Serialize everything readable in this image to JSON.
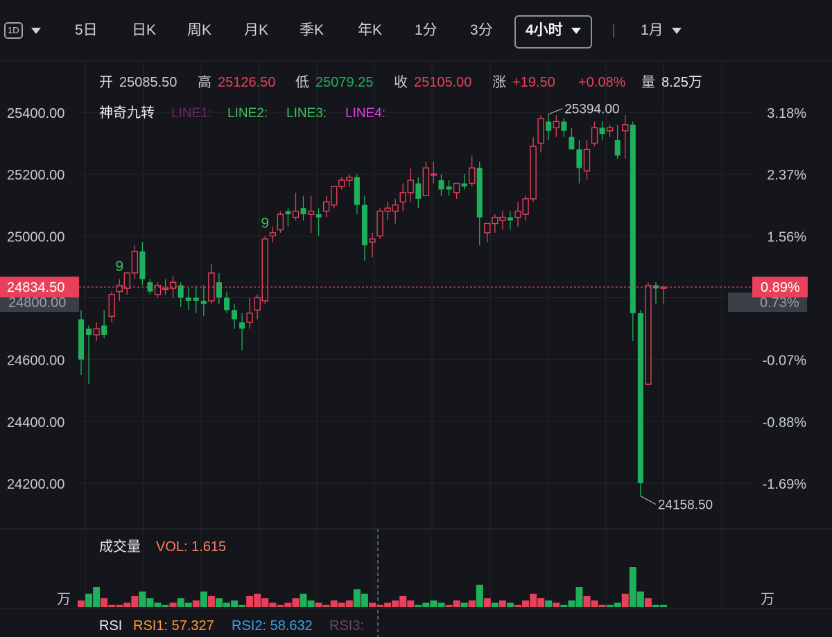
{
  "toolbar": {
    "interval_badge": "1D",
    "tabs": [
      "5日",
      "日K",
      "周K",
      "月K",
      "季K",
      "年K",
      "1分",
      "3分"
    ],
    "active_tab": "4小时",
    "period": "1月"
  },
  "info_bar": {
    "open_label": "开",
    "open": "25085.50",
    "high_label": "高",
    "high": "25126.50",
    "low_label": "低",
    "low": "25079.25",
    "close_label": "收",
    "close": "25105.00",
    "change_label": "涨",
    "change": "+19.50",
    "change_pct": "+0.08%",
    "volume_label": "量",
    "volume": "8.25万"
  },
  "indicator": {
    "name": "神奇九转",
    "lines": [
      "LINE1:",
      "LINE2:",
      "LINE3:",
      "LINE4:"
    ]
  },
  "colors": {
    "up": "#e8405a",
    "down": "#1fb05c",
    "background": "#14161b",
    "line1": "#6d2a63",
    "line2": "#3fbf5f",
    "line3": "#3fbf5f",
    "line4": "#e040e0"
  },
  "volume_panel": {
    "label": "成交量",
    "vol_label": "VOL: 1.615",
    "unit": "万"
  },
  "rsi_panel": {
    "label": "RSI",
    "rsi1": "RSI1: 57.327",
    "rsi2": "RSI2: 58.632",
    "rsi3": "RSI3:"
  },
  "price_marker": {
    "price": "24834.50",
    "pct": "0.89%",
    "hidden_left": "24800.00",
    "hidden_right": "0.73%"
  },
  "chart_data": {
    "type": "candlestick",
    "ylim": [
      24000,
      25550
    ],
    "y_ticks": [
      {
        "value": 25400,
        "label": "25400.00",
        "pct": "3.18%"
      },
      {
        "value": 25200,
        "label": "25200.00",
        "pct": "2.37%"
      },
      {
        "value": 25000,
        "label": "25000.00",
        "pct": "1.56%"
      },
      {
        "value": 24600,
        "label": "24600.00",
        "pct": "-0.07%"
      },
      {
        "value": 24400,
        "label": "24400.00",
        "pct": "-0.88%"
      },
      {
        "value": 24200,
        "label": "24200.00",
        "pct": "-1.69%"
      }
    ],
    "candles": [
      [
        24730,
        24760,
        24550,
        24600
      ],
      [
        24700,
        24710,
        24520,
        24680
      ],
      [
        24680,
        24720,
        24660,
        24700
      ],
      [
        24710,
        24760,
        24670,
        24680
      ],
      [
        24740,
        24820,
        24720,
        24810
      ],
      [
        24820,
        24860,
        24790,
        24840
      ],
      [
        24830,
        24880,
        24810,
        24880
      ],
      [
        24880,
        24970,
        24860,
        24950
      ],
      [
        24950,
        24980,
        24840,
        24860
      ],
      [
        24850,
        24860,
        24810,
        24820
      ],
      [
        24810,
        24850,
        24800,
        24840
      ],
      [
        24830,
        24860,
        24810,
        24830
      ],
      [
        24830,
        24870,
        24800,
        24850
      ],
      [
        24840,
        24850,
        24770,
        24800
      ],
      [
        24800,
        24830,
        24760,
        24790
      ],
      [
        24800,
        24840,
        24750,
        24790
      ],
      [
        24790,
        24840,
        24740,
        24780
      ],
      [
        24790,
        24910,
        24780,
        24880
      ],
      [
        24850,
        24880,
        24780,
        24800
      ],
      [
        24800,
        24820,
        24750,
        24760
      ],
      [
        24760,
        24780,
        24700,
        24730
      ],
      [
        24720,
        24750,
        24630,
        24700
      ],
      [
        24720,
        24800,
        24700,
        24750
      ],
      [
        24760,
        24810,
        24730,
        24800
      ],
      [
        24790,
        25000,
        24780,
        24990
      ],
      [
        25000,
        25030,
        24980,
        25010
      ],
      [
        25020,
        25080,
        25010,
        25070
      ],
      [
        25080,
        25090,
        25030,
        25070
      ],
      [
        25060,
        25140,
        25050,
        25080
      ],
      [
        25090,
        25130,
        25050,
        25070
      ],
      [
        25070,
        25130,
        25010,
        25080
      ],
      [
        25070,
        25090,
        25000,
        25060
      ],
      [
        25080,
        25130,
        25060,
        25110
      ],
      [
        25100,
        25160,
        25090,
        25160
      ],
      [
        25160,
        25190,
        25150,
        25180
      ],
      [
        25180,
        25200,
        25160,
        25190
      ],
      [
        25190,
        25200,
        25070,
        25100
      ],
      [
        25100,
        25130,
        24920,
        24970
      ],
      [
        24980,
        25010,
        24930,
        24990
      ],
      [
        25000,
        25090,
        24990,
        25080
      ],
      [
        25080,
        25110,
        25050,
        25090
      ],
      [
        25080,
        25120,
        25040,
        25100
      ],
      [
        25110,
        25170,
        25080,
        25140
      ],
      [
        25140,
        25220,
        25110,
        25180
      ],
      [
        25170,
        25190,
        25090,
        25120
      ],
      [
        25130,
        25240,
        25130,
        25220
      ],
      [
        25200,
        25240,
        25170,
        25200
      ],
      [
        25180,
        25200,
        25130,
        25150
      ],
      [
        25160,
        25180,
        25130,
        25150
      ],
      [
        25140,
        25170,
        25120,
        25170
      ],
      [
        25170,
        25200,
        25150,
        25160
      ],
      [
        25170,
        25260,
        25160,
        25220
      ],
      [
        25220,
        25240,
        24970,
        25060
      ],
      [
        25010,
        25040,
        24980,
        25040
      ],
      [
        25040,
        25070,
        25010,
        25060
      ],
      [
        25050,
        25080,
        25020,
        25060
      ],
      [
        25060,
        25080,
        25020,
        25050
      ],
      [
        25060,
        25110,
        25030,
        25080
      ],
      [
        25070,
        25130,
        25050,
        25120
      ],
      [
        25120,
        25320,
        25110,
        25290
      ],
      [
        25300,
        25390,
        25270,
        25380
      ],
      [
        25370,
        25394,
        25310,
        25340
      ],
      [
        25350,
        25390,
        25320,
        25370
      ],
      [
        25370,
        25380,
        25320,
        25340
      ],
      [
        25320,
        25350,
        25280,
        25280
      ],
      [
        25280,
        25310,
        25170,
        25220
      ],
      [
        25210,
        25310,
        25180,
        25280
      ],
      [
        25300,
        25370,
        25290,
        25350
      ],
      [
        25350,
        25370,
        25310,
        25330
      ],
      [
        25340,
        25360,
        25320,
        25350
      ],
      [
        25310,
        25360,
        25250,
        25260
      ],
      [
        25340,
        25390,
        25250,
        25360
      ],
      [
        25360,
        25370,
        24660,
        24750
      ],
      [
        24750,
        24760,
        24158.5,
        24200
      ],
      [
        24520,
        24850,
        24520,
        24840
      ],
      [
        24840,
        24850,
        24780,
        24830
      ],
      [
        24830,
        24840,
        24780,
        24834.5
      ]
    ],
    "volume": [
      [
        0.3,
        1
      ],
      [
        0.6,
        0
      ],
      [
        0.9,
        0
      ],
      [
        0.4,
        1
      ],
      [
        0.1,
        1
      ],
      [
        0.1,
        1
      ],
      [
        0.2,
        1
      ],
      [
        0.5,
        1
      ],
      [
        0.7,
        0
      ],
      [
        0.4,
        0
      ],
      [
        0.2,
        0
      ],
      [
        0.1,
        0
      ],
      [
        0.2,
        1
      ],
      [
        0.4,
        0
      ],
      [
        0.2,
        0
      ],
      [
        0.3,
        1
      ],
      [
        0.7,
        0
      ],
      [
        0.5,
        1
      ],
      [
        0.4,
        0
      ],
      [
        0.2,
        0
      ],
      [
        0.3,
        0
      ],
      [
        0.1,
        0
      ],
      [
        0.5,
        1
      ],
      [
        0.6,
        1
      ],
      [
        0.4,
        1
      ],
      [
        0.2,
        1
      ],
      [
        0.1,
        1
      ],
      [
        0.2,
        1
      ],
      [
        0.4,
        1
      ],
      [
        0.6,
        0
      ],
      [
        0.3,
        0
      ],
      [
        0.2,
        1
      ],
      [
        0.1,
        1
      ],
      [
        0.3,
        1
      ],
      [
        0.2,
        1
      ],
      [
        0.3,
        1
      ],
      [
        0.8,
        0
      ],
      [
        0.6,
        0
      ],
      [
        0.2,
        1
      ],
      [
        0.1,
        1
      ],
      [
        0.2,
        1
      ],
      [
        0.3,
        1
      ],
      [
        0.5,
        1
      ],
      [
        0.3,
        1
      ],
      [
        0.1,
        0
      ],
      [
        0.2,
        0
      ],
      [
        0.3,
        0
      ],
      [
        0.2,
        0
      ],
      [
        0.1,
        1
      ],
      [
        0.3,
        1
      ],
      [
        0.2,
        0
      ],
      [
        0.3,
        1
      ],
      [
        1.0,
        0
      ],
      [
        0.4,
        1
      ],
      [
        0.2,
        0
      ],
      [
        0.3,
        1
      ],
      [
        0.2,
        0
      ],
      [
        0.1,
        1
      ],
      [
        0.3,
        1
      ],
      [
        0.6,
        1
      ],
      [
        0.4,
        1
      ],
      [
        0.3,
        0
      ],
      [
        0.2,
        1
      ],
      [
        0.1,
        0
      ],
      [
        0.3,
        0
      ],
      [
        0.9,
        0
      ],
      [
        0.5,
        1
      ],
      [
        0.3,
        1
      ],
      [
        0.1,
        1
      ],
      [
        0.1,
        0
      ],
      [
        0.2,
        0
      ],
      [
        0.6,
        1
      ],
      [
        1.8,
        0
      ],
      [
        0.7,
        0
      ],
      [
        0.4,
        1
      ],
      [
        0.1,
        0
      ],
      [
        0.1,
        0
      ]
    ],
    "annotations": {
      "high": {
        "value": 25394,
        "label": "25394.00"
      },
      "low": {
        "value": 24158.5,
        "label": "24158.50"
      },
      "nine_markers": [
        {
          "candle": 5,
          "label": "9"
        },
        {
          "candle": 24,
          "label": "9"
        }
      ]
    },
    "current_price": 24834.5
  }
}
